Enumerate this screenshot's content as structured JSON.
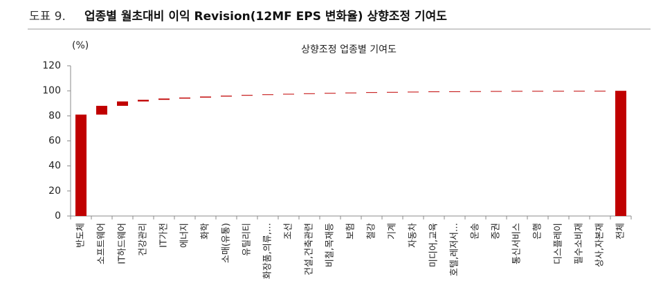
{
  "header": {
    "label": "도표 9.",
    "title": "업종별 월초대비 이익 Revision(12MF EPS 변화율) 상향조정 기여도"
  },
  "chart_data": {
    "type": "waterfall",
    "title": "상향조정 업종별 기여도",
    "y_unit": "(%)",
    "categories": [
      "반도체",
      "소프트웨어",
      "IT하드웨어",
      "건강관리",
      "IT가전",
      "에너지",
      "화학",
      "소매(유통)",
      "유틸리티",
      "화장품,의류,…",
      "조선",
      "건설,건축관련",
      "비철,목재등",
      "보험",
      "철강",
      "기계",
      "자동차",
      "미디어,교육",
      "호텔,레저서…",
      "운송",
      "증권",
      "통신서비스",
      "은행",
      "디스플레이",
      "필수소비재",
      "상사,자본재",
      "전체"
    ],
    "values": [
      81,
      7,
      3.5,
      1.3,
      1.0,
      0.8,
      0.8,
      0.7,
      0.6,
      0.5,
      0.4,
      0.4,
      0.3,
      0.3,
      0.3,
      0.2,
      0.2,
      0.2,
      0.1,
      0.1,
      0.1,
      0.1,
      0.025,
      0.025,
      0.025,
      0.025,
      100
    ],
    "last_is_total": true,
    "color": "#c00000",
    "ylim": [
      0,
      120
    ],
    "yticks": [
      0,
      20,
      40,
      60,
      80,
      100,
      120
    ],
    "grid": false
  }
}
